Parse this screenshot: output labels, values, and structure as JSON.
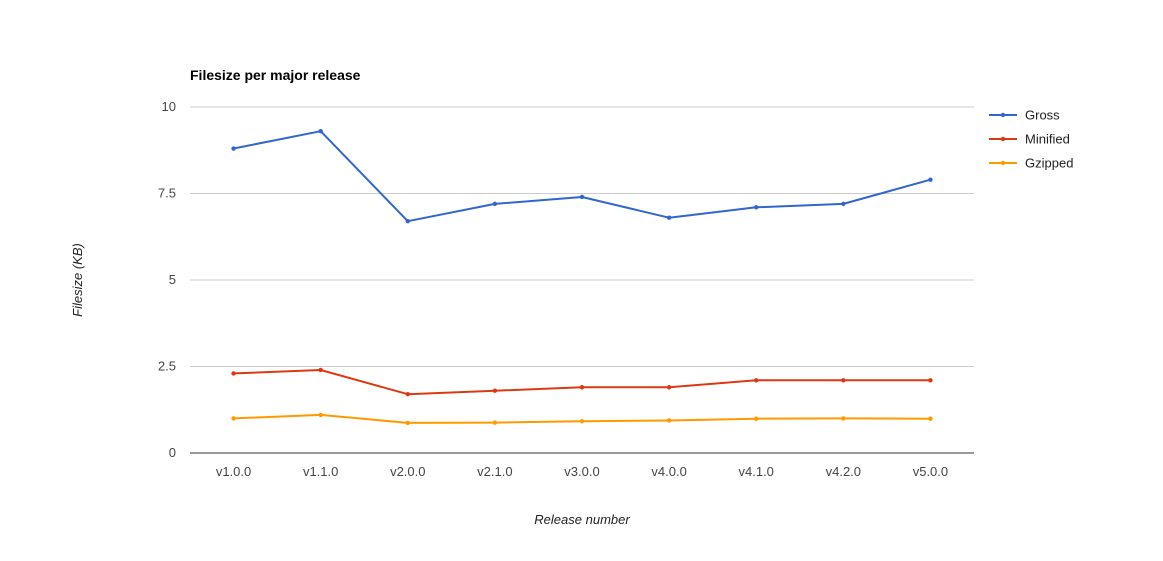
{
  "chart_data": {
    "type": "line",
    "title": "Filesize per major release",
    "xlabel": "Release number",
    "ylabel": "Filesize (KB)",
    "categories": [
      "v1.0.0",
      "v1.1.0",
      "v2.0.0",
      "v2.1.0",
      "v3.0.0",
      "v4.0.0",
      "v4.1.0",
      "v4.2.0",
      "v5.0.0"
    ],
    "ylim": [
      0,
      10
    ],
    "yticks": [
      0,
      2.5,
      5,
      7.5,
      10
    ],
    "ytick_labels": [
      "0",
      "2.5",
      "5",
      "7.5",
      "10"
    ],
    "grid": true,
    "legend_position": "right",
    "series": [
      {
        "name": "Gross",
        "color": "#3366cc",
        "values": [
          8.8,
          9.3,
          6.7,
          7.2,
          7.4,
          6.8,
          7.1,
          7.2,
          7.9
        ]
      },
      {
        "name": "Minified",
        "color": "#dc3912",
        "values": [
          2.3,
          2.4,
          1.7,
          1.8,
          1.9,
          1.9,
          2.1,
          2.1,
          2.1
        ]
      },
      {
        "name": "Gzipped",
        "color": "#ff9900",
        "values": [
          1.0,
          1.1,
          0.87,
          0.88,
          0.92,
          0.94,
          0.99,
          1.0,
          0.99
        ]
      }
    ]
  }
}
